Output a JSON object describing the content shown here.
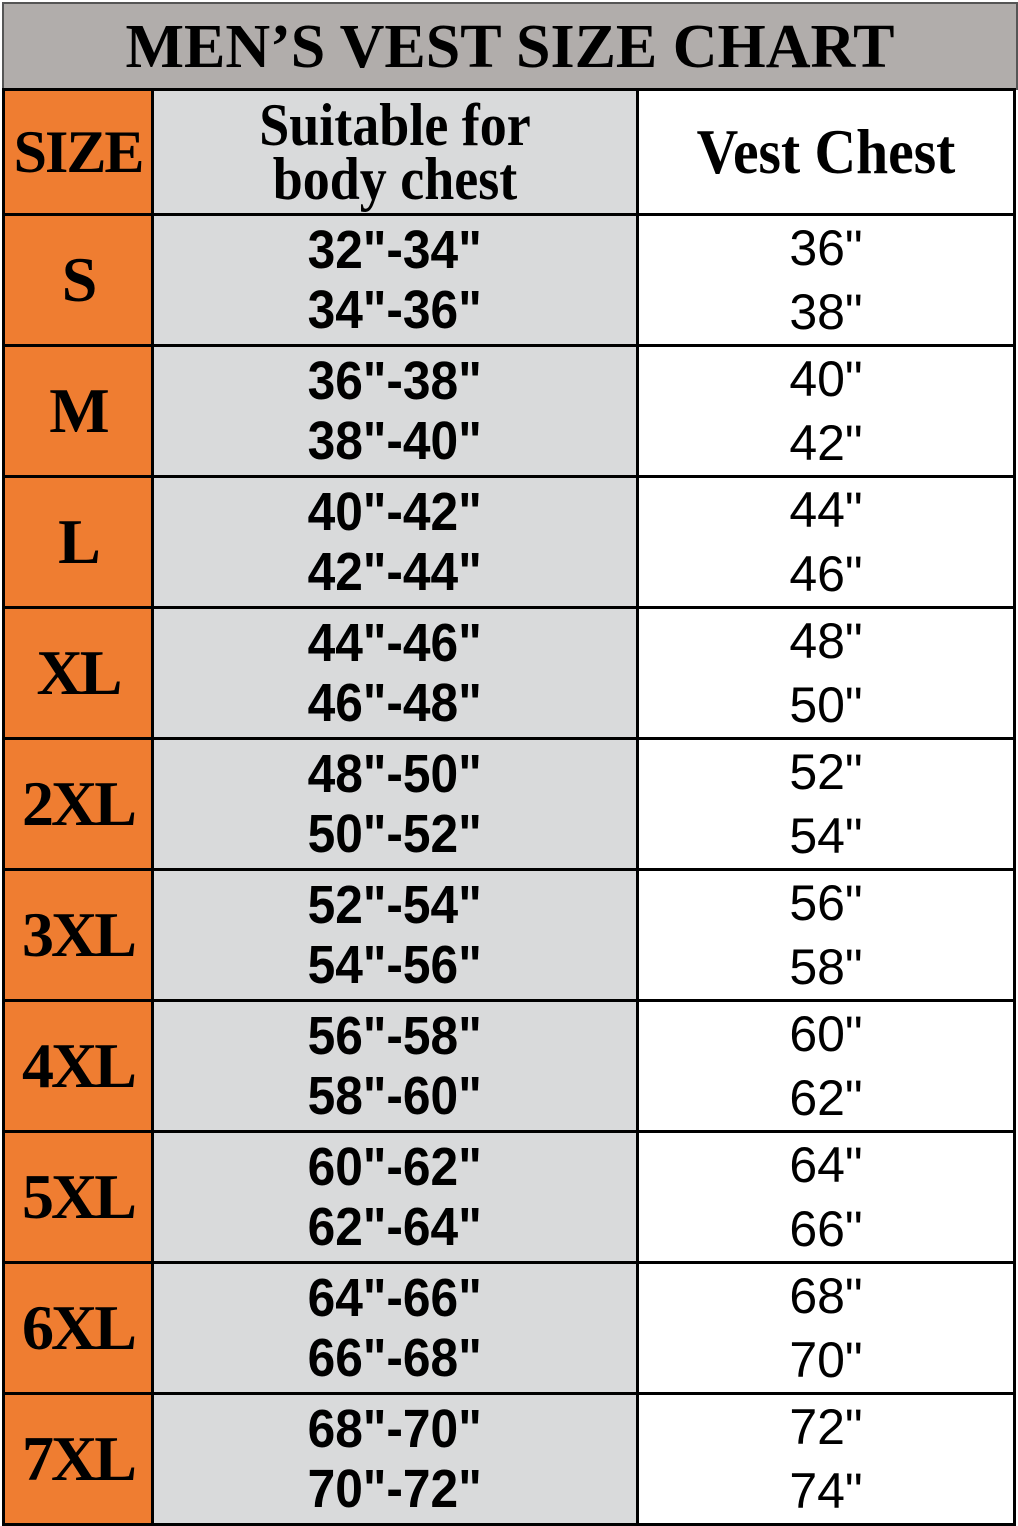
{
  "title": "MEN’S VEST SIZE CHART",
  "headers": {
    "size": "SIZE",
    "body_line1": "Suitable for",
    "body_line2": "body chest",
    "vest": "Vest Chest"
  },
  "colors": {
    "title_bg": "#b1adab",
    "size_bg": "#ef7d31",
    "body_bg": "#d9dadb",
    "vest_bg": "#ffffff"
  },
  "rows": [
    {
      "size": "S",
      "body1": "32\"-34\"",
      "body2": "34\"-36\"",
      "vest1": "36\"",
      "vest2": "38\""
    },
    {
      "size": "M",
      "body1": "36\"-38\"",
      "body2": "38\"-40\"",
      "vest1": "40\"",
      "vest2": "42\""
    },
    {
      "size": "L",
      "body1": "40\"-42\"",
      "body2": "42\"-44\"",
      "vest1": "44\"",
      "vest2": "46\""
    },
    {
      "size": "XL",
      "body1": "44\"-46\"",
      "body2": "46\"-48\"",
      "vest1": "48\"",
      "vest2": "50\""
    },
    {
      "size": "2XL",
      "body1": "48\"-50\"",
      "body2": "50\"-52\"",
      "vest1": "52\"",
      "vest2": "54\""
    },
    {
      "size": "3XL",
      "body1": "52\"-54\"",
      "body2": "54\"-56\"",
      "vest1": "56\"",
      "vest2": "58\""
    },
    {
      "size": "4XL",
      "body1": "56\"-58\"",
      "body2": "58\"-60\"",
      "vest1": "60\"",
      "vest2": "62\""
    },
    {
      "size": "5XL",
      "body1": "60\"-62\"",
      "body2": "62\"-64\"",
      "vest1": "64\"",
      "vest2": "66\""
    },
    {
      "size": "6XL",
      "body1": "64\"-66\"",
      "body2": "66\"-68\"",
      "vest1": "68\"",
      "vest2": "70\""
    },
    {
      "size": "7XL",
      "body1": "68\"-70\"",
      "body2": "70\"-72\"",
      "vest1": "72\"",
      "vest2": "74\""
    }
  ]
}
